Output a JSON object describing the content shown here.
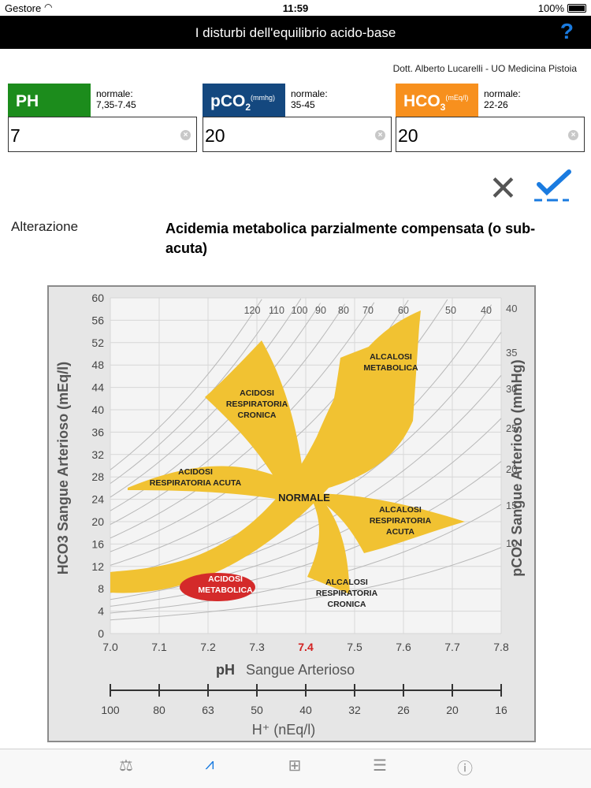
{
  "status": {
    "carrier": "Gestore",
    "time": "11:59",
    "battery": "100%"
  },
  "nav": {
    "title": "I disturbi dell'equilibrio acido-base",
    "help": "?"
  },
  "author": "Dott. Alberto Lucarelli - UO Medicina Pistoia",
  "params": {
    "ph": {
      "label": "PH",
      "normal_label": "normale:",
      "normal_range": "7,35-7.45",
      "value": "7",
      "color": "#1c8c1c"
    },
    "pco2": {
      "label": "pCO",
      "sub": "2",
      "unit": "(mmhg)",
      "normal_label": "normale:",
      "normal_range": "35-45",
      "value": "20",
      "color": "#14487f"
    },
    "hco3": {
      "label": "HCO",
      "sub": "3",
      "unit": "(mEq/l)",
      "normal_label": "normale:",
      "normal_range": "22-26",
      "value": "20",
      "color": "#f7901e"
    }
  },
  "result": {
    "label": "Alterazione",
    "value": "Acidemia metabolica parzialmente compensata (o sub-acuta)"
  },
  "chart_data": {
    "type": "nomogram",
    "x_axis": {
      "title_main": "pH",
      "title_rest": "Sangue Arterioso",
      "ticks": [
        "7.0",
        "7.1",
        "7.2",
        "7.3",
        "7.4",
        "7.5",
        "7.6",
        "7.7",
        "7.8"
      ],
      "highlight": "7.4",
      "highlight_color": "#d22020"
    },
    "y_axis": {
      "title": "HCO3 Sangue Arterioso (mEq/l)",
      "ticks": [
        "0",
        "4",
        "8",
        "12",
        "16",
        "20",
        "24",
        "28",
        "32",
        "36",
        "40",
        "44",
        "48",
        "52",
        "56",
        "60"
      ]
    },
    "right_axis": {
      "title": "pCO2 Sangue Arterioso (mmHg)",
      "ticks": [
        "10",
        "15",
        "20",
        "25",
        "30",
        "35",
        "40"
      ]
    },
    "top_isobars": [
      "120",
      "110",
      "100",
      "90",
      "80",
      "70",
      "60",
      "50",
      "40"
    ],
    "h_scale": {
      "title": "H⁺ (nEq/l)",
      "ticks": [
        "100",
        "80",
        "63",
        "50",
        "40",
        "32",
        "26",
        "20",
        "16"
      ]
    },
    "regions": {
      "chronic_resp_acidosis": [
        "ACIDOSI",
        "RESPIRATORIA",
        "CRONICA"
      ],
      "metabolic_alkalosis": [
        "ALCALOSI",
        "METABOLICA"
      ],
      "acute_resp_acidosis": [
        "ACIDOSI",
        "RESPIRATORIA ACUTA"
      ],
      "normal": [
        "NORMALE"
      ],
      "acute_resp_alkalosis": [
        "ALCALOSI",
        "RESPIRATORIA",
        "ACUTA"
      ],
      "metabolic_acidosis": [
        "ACIDOSI",
        "METABOLICA"
      ],
      "chronic_resp_alkalosis": [
        "ALCALOSI",
        "RESPIRATORIA",
        "CRONICA"
      ]
    },
    "band_color": "#f1c232",
    "highlight_region_color": "#d42a2a",
    "grid": true
  },
  "tabs": [
    "balance-icon",
    "chart-icon",
    "table-icon",
    "list-icon",
    "info-icon"
  ]
}
